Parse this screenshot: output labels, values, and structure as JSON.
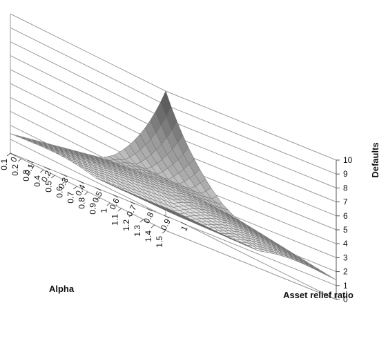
{
  "chart_data": {
    "type": "surface",
    "title": "",
    "zlabel": "Defaults",
    "xlabel": "Asset relief ratio",
    "ylabel": "Alpha",
    "zlim": [
      0,
      10
    ],
    "z_ticks": [
      "0",
      "1",
      "2",
      "3",
      "4",
      "5",
      "6",
      "7",
      "8",
      "9",
      "10"
    ],
    "x_ticks": [
      "0",
      "0.1",
      "0.2",
      "0.3",
      "0.4",
      "0.5",
      "0.6",
      "0.7",
      "0.8",
      "0.9",
      "1"
    ],
    "y_ticks": [
      "0.1",
      "0.2",
      "0.3",
      "0.4",
      "0.5",
      "0.6",
      "0.7",
      "0.8",
      "0.9",
      "1",
      "1.1",
      "1.2",
      "1.3",
      "1.4",
      "1.5"
    ],
    "shading_bands": [
      "#f0f0f0",
      "#dedede",
      "#cecece",
      "#bdbdbd",
      "#acacac",
      "#9c9c9c",
      "#8c8c8c",
      "#7c7c7c",
      "#6d6d6d",
      "#5e5e5e"
    ],
    "peak": {
      "asset_relief_ratio": 0,
      "alpha": 1.5,
      "defaults": 10
    },
    "surface_model": "Defaults peak 10 at (Asset relief ratio 0, Alpha 1.5); plateau ~4 along both back edges; ~0.5 at Asset relief ratio 1 and Alpha 0.1"
  }
}
